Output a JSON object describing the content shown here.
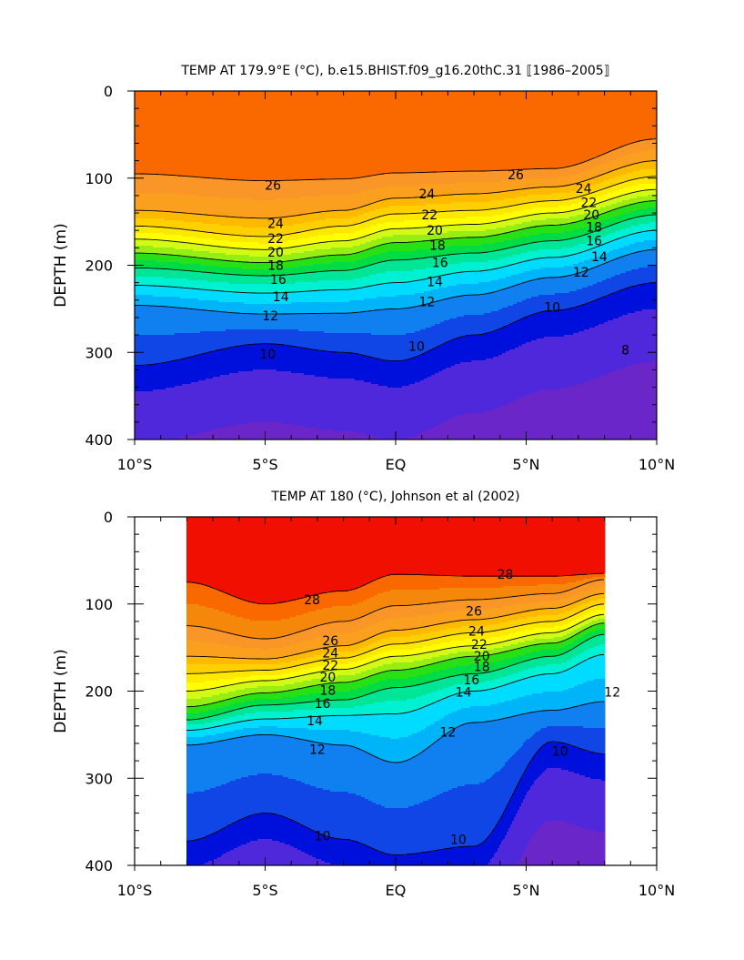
{
  "chart_data": [
    {
      "type": "contour",
      "title": "TEMP AT 179.9°E (°C), b.e15.BHIST.f09_g16.20thC.31 ⟦1986–2005⟧",
      "ylabel": "DEPTH (m)",
      "xlabel": "",
      "x_ticklabels": [
        "10°S",
        "5°S",
        "EQ",
        "5°N",
        "10°N"
      ],
      "y_ticklabels": [
        "0",
        "100",
        "200",
        "300",
        "400"
      ],
      "xlim": [
        -10,
        10
      ],
      "ylim": [
        400,
        0
      ],
      "data_x_range": [
        -10,
        10
      ],
      "levels": [
        8,
        9,
        10,
        11,
        12,
        13,
        14,
        15,
        16,
        17,
        18,
        19,
        20,
        21,
        22,
        23,
        24,
        25,
        26,
        27,
        28,
        29
      ],
      "isotherms": [
        {
          "value": 26,
          "x": [
            -10,
            -5,
            -2,
            0,
            3,
            6,
            10
          ],
          "depth": [
            95,
            103,
            101,
            94,
            92,
            89,
            55
          ]
        },
        {
          "value": 24,
          "x": [
            -10,
            -5,
            -2,
            0,
            3,
            6,
            10
          ],
          "depth": [
            137,
            146,
            137,
            123,
            118,
            110,
            80
          ]
        },
        {
          "value": 22,
          "x": [
            -10,
            -5,
            -2,
            0,
            3,
            6,
            10
          ],
          "depth": [
            155,
            167,
            155,
            141,
            137,
            126,
            98
          ]
        },
        {
          "value": 20,
          "x": [
            -10,
            -5,
            -2,
            0,
            3,
            6,
            10
          ],
          "depth": [
            170,
            182,
            172,
            158,
            153,
            140,
            113
          ]
        },
        {
          "value": 18,
          "x": [
            -10,
            -5,
            -2,
            0,
            3,
            6,
            10
          ],
          "depth": [
            186,
            197,
            188,
            174,
            168,
            154,
            126
          ]
        },
        {
          "value": 16,
          "x": [
            -10,
            -5,
            -2,
            0,
            3,
            6,
            10
          ],
          "depth": [
            203,
            212,
            206,
            194,
            186,
            172,
            142
          ]
        },
        {
          "value": 14,
          "x": [
            -10,
            -5,
            -2,
            0,
            3,
            6,
            10
          ],
          "depth": [
            223,
            232,
            228,
            220,
            207,
            191,
            160
          ]
        },
        {
          "value": 12,
          "x": [
            -10,
            -5,
            -2,
            0,
            3,
            6,
            10
          ],
          "depth": [
            246,
            256,
            255,
            250,
            234,
            214,
            182
          ]
        },
        {
          "value": 10,
          "x": [
            -10,
            -5,
            -2,
            0,
            3,
            6,
            10
          ],
          "depth": [
            315,
            290,
            300,
            310,
            280,
            252,
            220
          ]
        }
      ],
      "contour_labels": [
        {
          "text": "26",
          "x": -4.7,
          "depth": 108
        },
        {
          "text": "26",
          "x": 4.6,
          "depth": 96
        },
        {
          "text": "24",
          "x": -4.6,
          "depth": 152
        },
        {
          "text": "24",
          "x": 1.2,
          "depth": 118
        },
        {
          "text": "24",
          "x": 7.2,
          "depth": 112
        },
        {
          "text": "22",
          "x": -4.6,
          "depth": 169
        },
        {
          "text": "22",
          "x": 1.3,
          "depth": 142
        },
        {
          "text": "22",
          "x": 7.4,
          "depth": 128
        },
        {
          "text": "20",
          "x": -4.6,
          "depth": 185
        },
        {
          "text": "20",
          "x": 1.5,
          "depth": 160
        },
        {
          "text": "20",
          "x": 7.5,
          "depth": 142
        },
        {
          "text": "18",
          "x": -4.6,
          "depth": 200
        },
        {
          "text": "18",
          "x": 1.6,
          "depth": 177
        },
        {
          "text": "18",
          "x": 7.6,
          "depth": 156
        },
        {
          "text": "16",
          "x": -4.5,
          "depth": 216
        },
        {
          "text": "16",
          "x": 1.7,
          "depth": 197
        },
        {
          "text": "16",
          "x": 7.6,
          "depth": 172
        },
        {
          "text": "14",
          "x": -4.4,
          "depth": 236
        },
        {
          "text": "14",
          "x": 1.5,
          "depth": 219
        },
        {
          "text": "14",
          "x": 7.8,
          "depth": 190
        },
        {
          "text": "12",
          "x": -4.8,
          "depth": 258
        },
        {
          "text": "12",
          "x": 1.2,
          "depth": 242
        },
        {
          "text": "12",
          "x": 7.1,
          "depth": 208
        },
        {
          "text": "10",
          "x": -4.9,
          "depth": 302
        },
        {
          "text": "10",
          "x": 0.8,
          "depth": 293
        },
        {
          "text": "10",
          "x": 6.0,
          "depth": 248
        },
        {
          "text": "8",
          "x": 8.8,
          "depth": 297
        }
      ]
    },
    {
      "type": "contour",
      "title": "TEMP AT 180 (°C), Johnson et al (2002)",
      "ylabel": "DEPTH (m)",
      "xlabel": "",
      "x_ticklabels": [
        "10°S",
        "5°S",
        "EQ",
        "5°N",
        "10°N"
      ],
      "y_ticklabels": [
        "0",
        "100",
        "200",
        "300",
        "400"
      ],
      "xlim": [
        -10,
        10
      ],
      "ylim": [
        400,
        0
      ],
      "data_x_range": [
        -8,
        8
      ],
      "levels": [
        9,
        10,
        11,
        12,
        13,
        14,
        15,
        16,
        17,
        18,
        19,
        20,
        21,
        22,
        23,
        24,
        25,
        26,
        27,
        28,
        29
      ],
      "isotherms": [
        {
          "value": 28,
          "x": [
            -8,
            -5,
            -2,
            0,
            3,
            6,
            8
          ],
          "depth": [
            75,
            100,
            85,
            66,
            68,
            68,
            65
          ]
        },
        {
          "value": 26,
          "x": [
            -8,
            -5,
            -2,
            0,
            3,
            6,
            8
          ],
          "depth": [
            125,
            140,
            120,
            102,
            95,
            88,
            72
          ]
        },
        {
          "value": 24,
          "x": [
            -8,
            -5,
            -2,
            0,
            3,
            6,
            8
          ],
          "depth": [
            160,
            163,
            148,
            130,
            118,
            105,
            88
          ]
        },
        {
          "value": 22,
          "x": [
            -8,
            -5,
            -2,
            0,
            3,
            6,
            8
          ],
          "depth": [
            180,
            176,
            162,
            146,
            133,
            120,
            100
          ]
        },
        {
          "value": 20,
          "x": [
            -8,
            -5,
            -2,
            0,
            3,
            6,
            8
          ],
          "depth": [
            200,
            188,
            175,
            160,
            148,
            133,
            112
          ]
        },
        {
          "value": 18,
          "x": [
            -8,
            -5,
            -2,
            0,
            3,
            6,
            8
          ],
          "depth": [
            218,
            202,
            190,
            176,
            160,
            145,
            122
          ]
        },
        {
          "value": 16,
          "x": [
            -8,
            -5,
            -2,
            0,
            3,
            6,
            8
          ],
          "depth": [
            233,
            216,
            210,
            196,
            180,
            160,
            135
          ]
        },
        {
          "value": 14,
          "x": [
            -8,
            -5,
            -2,
            0,
            3,
            6,
            8
          ],
          "depth": [
            245,
            232,
            228,
            226,
            200,
            180,
            158
          ]
        },
        {
          "value": 12,
          "x": [
            -8,
            -5,
            -2,
            0,
            3,
            6,
            8
          ],
          "depth": [
            262,
            250,
            262,
            282,
            236,
            222,
            212
          ]
        },
        {
          "value": 10,
          "x": [
            -8,
            -5,
            -2,
            0,
            3,
            6,
            8
          ],
          "depth": [
            372,
            340,
            370,
            388,
            378,
            258,
            272
          ]
        }
      ],
      "contour_labels": [
        {
          "text": "28",
          "x": -3.2,
          "depth": 95
        },
        {
          "text": "28",
          "x": 4.2,
          "depth": 66
        },
        {
          "text": "26",
          "x": -2.5,
          "depth": 142
        },
        {
          "text": "26",
          "x": 3.0,
          "depth": 108
        },
        {
          "text": "24",
          "x": -2.5,
          "depth": 156
        },
        {
          "text": "24",
          "x": 3.1,
          "depth": 131
        },
        {
          "text": "22",
          "x": -2.5,
          "depth": 170
        },
        {
          "text": "22",
          "x": 3.2,
          "depth": 146
        },
        {
          "text": "20",
          "x": -2.6,
          "depth": 184
        },
        {
          "text": "20",
          "x": 3.3,
          "depth": 160
        },
        {
          "text": "18",
          "x": -2.6,
          "depth": 199
        },
        {
          "text": "18",
          "x": 3.3,
          "depth": 172
        },
        {
          "text": "16",
          "x": -2.8,
          "depth": 214
        },
        {
          "text": "16",
          "x": 2.9,
          "depth": 187
        },
        {
          "text": "14",
          "x": -3.1,
          "depth": 234
        },
        {
          "text": "14",
          "x": 2.6,
          "depth": 201
        },
        {
          "text": "12",
          "x": -3.0,
          "depth": 267
        },
        {
          "text": "12",
          "x": 2.0,
          "depth": 247
        },
        {
          "text": "12",
          "x": 8.3,
          "depth": 201
        },
        {
          "text": "10",
          "x": -2.8,
          "depth": 366
        },
        {
          "text": "10",
          "x": 2.4,
          "depth": 370
        },
        {
          "text": "10",
          "x": 6.3,
          "depth": 269
        }
      ]
    }
  ]
}
